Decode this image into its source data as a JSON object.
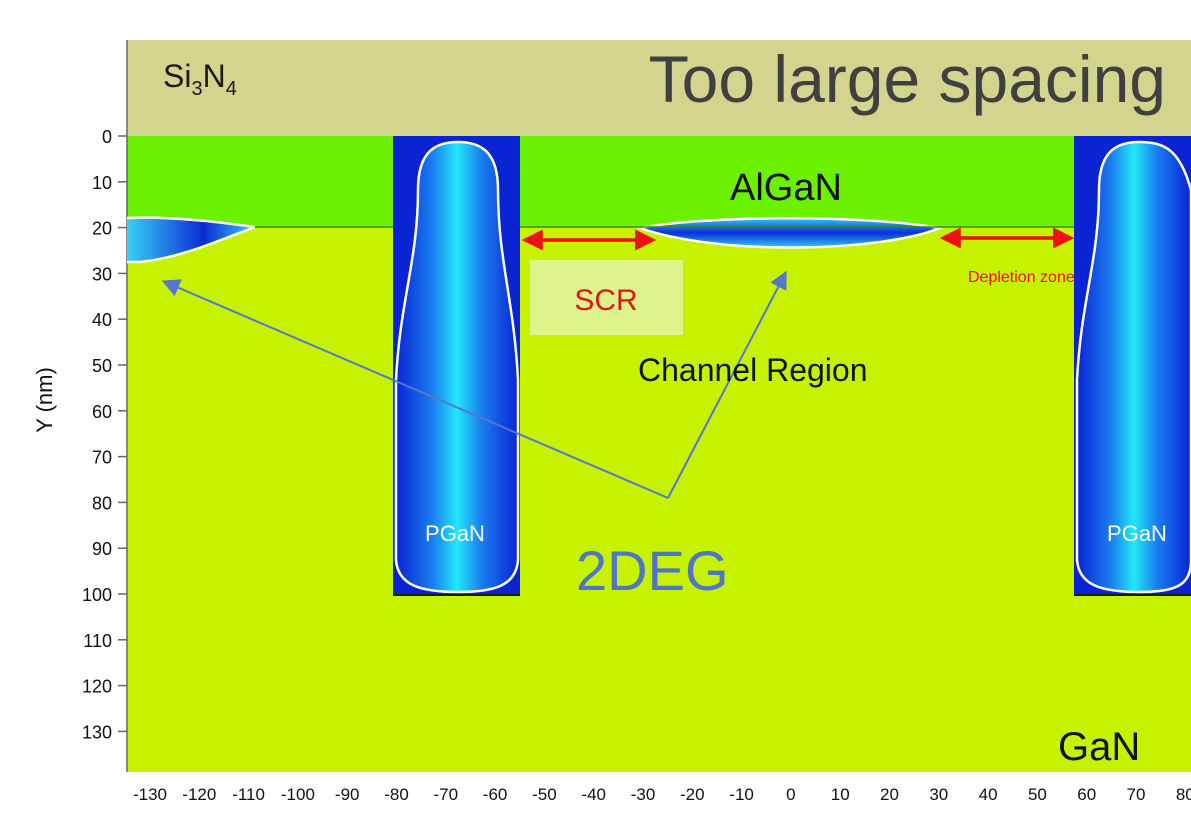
{
  "header": {
    "layer_label_base": "Si",
    "layer_label_sub1": "3",
    "layer_label_mid": "N",
    "layer_label_sub2": "4",
    "title": "Too large spacing"
  },
  "regions": {
    "algan": "AlGaN",
    "scr": "SCR",
    "depletion": "Depletion zone",
    "channel": "Channel Region",
    "twodeg": "2DEG",
    "gan": "GaN",
    "pgan_left": "PGaN",
    "pgan_right": "PGaN"
  },
  "axes": {
    "ylabel": "Y (nm)",
    "y_ticks": [
      "0",
      "10",
      "20",
      "30",
      "40",
      "50",
      "60",
      "70",
      "80",
      "90",
      "100",
      "110",
      "120",
      "130"
    ],
    "x_ticks": [
      "-130",
      "-120",
      "-110",
      "-100",
      "-90",
      "-80",
      "-70",
      "-60",
      "-50",
      "-40",
      "-30",
      "-20",
      "-10",
      "0",
      "10",
      "20",
      "30",
      "40",
      "50",
      "60",
      "70",
      "80"
    ]
  },
  "colors": {
    "nitride": "#d3d48d",
    "algan": "#6bf000",
    "gan": "#c6f200",
    "pgan_dark": "#1030d8",
    "pgan_light": "#18e8f8",
    "arrow_red": "#ee1111",
    "arrow_blue": "#5577cc",
    "twodeg_text": "#4f74c8",
    "scr_box": "#dcf28a",
    "scr_text": "#e31414"
  }
}
